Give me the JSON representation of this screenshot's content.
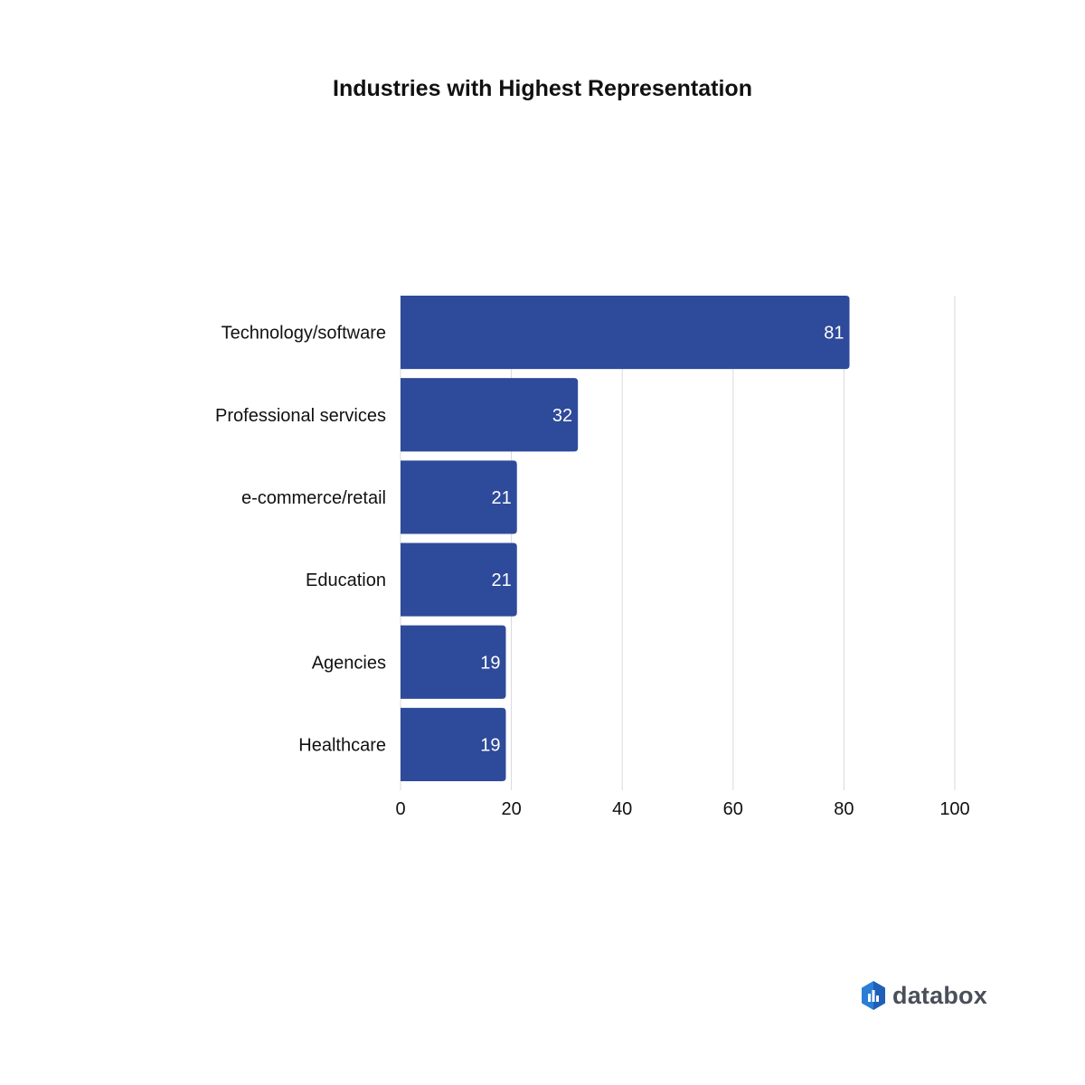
{
  "chart_data": {
    "type": "bar",
    "orientation": "horizontal",
    "title": "Industries with Highest Representation",
    "categories": [
      "Technology/software",
      "Professional services",
      "e-commerce/retail",
      "Education",
      "Agencies",
      "Healthcare"
    ],
    "values": [
      81,
      32,
      21,
      21,
      19,
      19
    ],
    "data_labels": [
      "81",
      "32",
      "21",
      "21",
      "19",
      "19"
    ],
    "xlim": [
      0,
      100
    ],
    "x_ticks": [
      "0",
      "20",
      "40",
      "60",
      "80",
      "100"
    ],
    "xlabel": "",
    "ylabel": "",
    "grid": true,
    "bar_color": "#2e4a9a",
    "grid_color": "#d9d9d9",
    "label_color": "#ffffff"
  },
  "brand": {
    "name": "databox",
    "logo_icon": "databox-hexagon-icon",
    "logo_color": "#2a7fd4"
  }
}
